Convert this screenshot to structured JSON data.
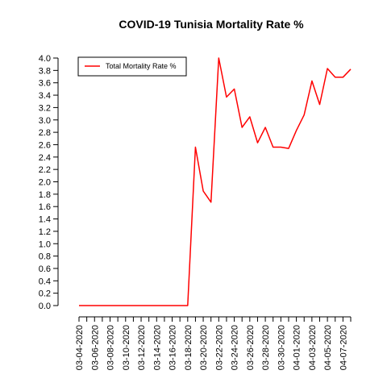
{
  "chart_data": {
    "type": "line",
    "title": "COVID-19 Tunisia Mortality Rate %",
    "xlabel": "",
    "ylabel": "",
    "x": [
      "03-04-2020",
      "03-05-2020",
      "03-06-2020",
      "03-07-2020",
      "03-08-2020",
      "03-09-2020",
      "03-10-2020",
      "03-11-2020",
      "03-12-2020",
      "03-13-2020",
      "03-14-2020",
      "03-15-2020",
      "03-16-2020",
      "03-17-2020",
      "03-18-2020",
      "03-19-2020",
      "03-20-2020",
      "03-21-2020",
      "03-22-2020",
      "03-23-2020",
      "03-24-2020",
      "03-25-2020",
      "03-26-2020",
      "03-27-2020",
      "03-28-2020",
      "03-29-2020",
      "03-30-2020",
      "03-31-2020",
      "04-01-2020",
      "04-02-2020",
      "04-03-2020",
      "04-04-2020",
      "04-05-2020",
      "04-06-2020",
      "04-07-2020",
      "04-08-2020"
    ],
    "x_tick_labels": [
      "03-04-2020",
      "03-06-2020",
      "03-08-2020",
      "03-10-2020",
      "03-12-2020",
      "03-14-2020",
      "03-16-2020",
      "03-18-2020",
      "03-20-2020",
      "03-22-2020",
      "03-24-2020",
      "03-26-2020",
      "03-28-2020",
      "03-30-2020",
      "04-01-2020",
      "04-03-2020",
      "04-05-2020",
      "04-07-2020"
    ],
    "y_ticks": [
      "0.0",
      "0.2",
      "0.4",
      "0.6",
      "0.8",
      "1.0",
      "1.2",
      "1.4",
      "1.6",
      "1.8",
      "2.0",
      "2.2",
      "2.4",
      "2.6",
      "2.8",
      "3.0",
      "3.2",
      "3.4",
      "3.6",
      "3.8",
      "4.0"
    ],
    "ylim": [
      0,
      4.0
    ],
    "series": [
      {
        "name": "Total Mortality Rate %",
        "color": "#ff0000",
        "values": [
          0,
          0,
          0,
          0,
          0,
          0,
          0,
          0,
          0,
          0,
          0,
          0,
          0,
          0,
          0,
          2.56,
          1.85,
          1.67,
          4.0,
          3.37,
          3.5,
          2.88,
          3.05,
          2.63,
          2.88,
          2.56,
          2.56,
          2.54,
          2.83,
          3.08,
          3.63,
          3.25,
          3.83,
          3.69,
          3.69,
          3.82
        ]
      }
    ],
    "legend_position": "top-left",
    "grid": false
  }
}
